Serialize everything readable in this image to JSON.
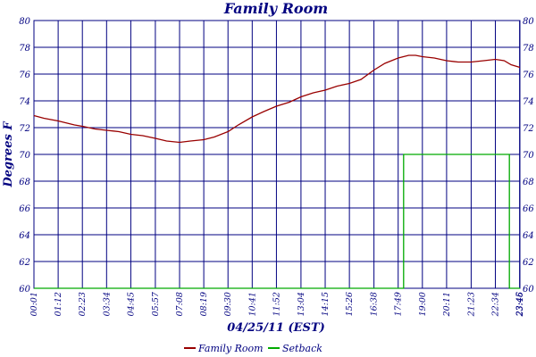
{
  "chart_data": {
    "type": "line",
    "title": "Family Room",
    "xlabel": "04/25/11 (EST)",
    "ylabel": "Degrees F",
    "ylim": [
      60,
      80
    ],
    "yticks": [
      "60",
      "62",
      "64",
      "66",
      "68",
      "70",
      "72",
      "74",
      "76",
      "78",
      "80"
    ],
    "xticks": [
      "00:01",
      "01:12",
      "02:23",
      "03:34",
      "04:45",
      "05:57",
      "07:08",
      "08:19",
      "09:30",
      "10:41",
      "11:52",
      "13:04",
      "14:15",
      "15:26",
      "16:38",
      "17:49",
      "19:00",
      "20:11",
      "21:23",
      "22:34",
      "23:45",
      "23:46"
    ],
    "grid": true,
    "legend_position": "bottom",
    "series": [
      {
        "name": "Family Room",
        "color": "#990000",
        "points": [
          [
            "00:01",
            72.9
          ],
          [
            "00:30",
            72.7
          ],
          [
            "01:12",
            72.5
          ],
          [
            "02:00",
            72.2
          ],
          [
            "02:23",
            72.1
          ],
          [
            "03:00",
            71.9
          ],
          [
            "03:34",
            71.8
          ],
          [
            "04:10",
            71.7
          ],
          [
            "04:45",
            71.5
          ],
          [
            "05:20",
            71.4
          ],
          [
            "05:57",
            71.2
          ],
          [
            "06:30",
            71.0
          ],
          [
            "07:08",
            70.9
          ],
          [
            "07:40",
            71.0
          ],
          [
            "08:19",
            71.1
          ],
          [
            "08:50",
            71.3
          ],
          [
            "09:30",
            71.7
          ],
          [
            "10:00",
            72.2
          ],
          [
            "10:41",
            72.8
          ],
          [
            "11:15",
            73.2
          ],
          [
            "11:52",
            73.6
          ],
          [
            "12:30",
            73.9
          ],
          [
            "13:04",
            74.3
          ],
          [
            "13:40",
            74.6
          ],
          [
            "14:15",
            74.8
          ],
          [
            "14:50",
            75.1
          ],
          [
            "15:26",
            75.3
          ],
          [
            "16:00",
            75.6
          ],
          [
            "16:38",
            76.3
          ],
          [
            "17:10",
            76.8
          ],
          [
            "17:49",
            77.2
          ],
          [
            "18:20",
            77.4
          ],
          [
            "18:40",
            77.4
          ],
          [
            "19:00",
            77.3
          ],
          [
            "19:35",
            77.2
          ],
          [
            "20:11",
            77.0
          ],
          [
            "20:45",
            76.9
          ],
          [
            "21:23",
            76.9
          ],
          [
            "22:00",
            77.0
          ],
          [
            "22:34",
            77.1
          ],
          [
            "23:00",
            77.0
          ],
          [
            "23:20",
            76.7
          ],
          [
            "23:46",
            76.5
          ]
        ]
      },
      {
        "name": "Setback",
        "color": "#00aa00",
        "points": [
          [
            "00:01",
            60
          ],
          [
            "18:05",
            60
          ],
          [
            "18:05",
            70
          ],
          [
            "23:15",
            70
          ],
          [
            "23:15",
            60
          ],
          [
            "23:46",
            60
          ]
        ]
      }
    ]
  }
}
